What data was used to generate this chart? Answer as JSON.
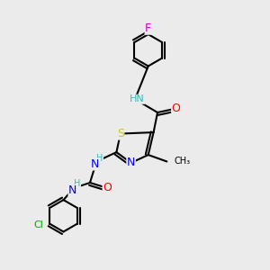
{
  "bg_color": "#ebebeb",
  "bond_color": "#000000",
  "bond_width": 1.5,
  "atom_colors": {
    "C": "#000000",
    "H": "#2abfbf",
    "N": "#0000ff",
    "O": "#ff0000",
    "S": "#cccc00",
    "F": "#cc00cc",
    "Cl": "#00aa00"
  },
  "font_size": 8,
  "xlim": [
    0,
    10
  ],
  "ylim": [
    0,
    10
  ]
}
